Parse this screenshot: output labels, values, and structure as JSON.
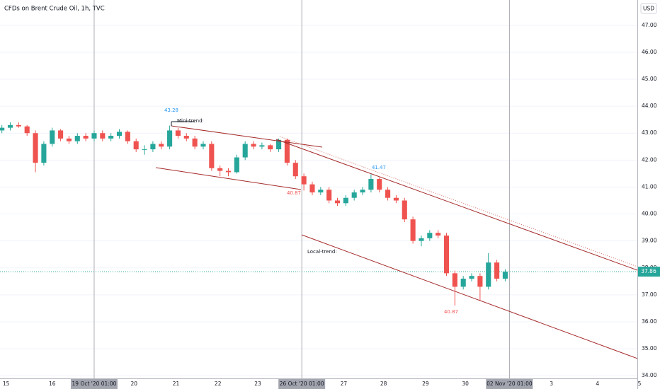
{
  "chart_data": {
    "type": "candlestick",
    "title": "CFDs on Brent Crude Oil, 1h, TVC",
    "currency": "USD",
    "x": [
      -0.2,
      0,
      0.2,
      0.4,
      0.6,
      0.8,
      1,
      1.2,
      1.4,
      1.6,
      1.8,
      2,
      2.2,
      2.4,
      2.6,
      2.8,
      3,
      3.2,
      3.4,
      3.6,
      3.8,
      4,
      4.2,
      4.4,
      4.6,
      4.8,
      5,
      5.2,
      5.4,
      5.6,
      5.8,
      6,
      6.2,
      6.4,
      6.6,
      6.8,
      7,
      7.2,
      7.4,
      7.6,
      7.8,
      8,
      8.2,
      8.4,
      8.6,
      8.8,
      9,
      9.2,
      9.4,
      9.6,
      9.8,
      10,
      10.2,
      10.4,
      10.6,
      10.8,
      11,
      11.2,
      11.4,
      11.6,
      11.8
    ],
    "open": [
      43.1,
      43.2,
      43.3,
      43.25,
      43.0,
      41.9,
      42.6,
      43.1,
      42.8,
      42.7,
      42.9,
      42.8,
      43.0,
      42.8,
      42.9,
      43.05,
      42.7,
      42.4,
      42.4,
      42.6,
      42.5,
      43.1,
      42.9,
      42.8,
      42.5,
      42.6,
      41.7,
      41.6,
      41.55,
      42.1,
      42.6,
      42.5,
      42.55,
      42.4,
      42.75,
      41.9,
      41.4,
      41.1,
      40.8,
      40.9,
      40.5,
      40.4,
      40.6,
      40.8,
      40.9,
      41.3,
      40.9,
      40.6,
      40.5,
      39.8,
      39.0,
      39.1,
      39.3,
      39.2,
      37.8,
      37.3,
      37.6,
      37.7,
      37.3,
      38.2,
      37.6
    ],
    "high": [
      43.3,
      43.4,
      43.4,
      43.3,
      43.1,
      42.7,
      43.2,
      43.15,
      42.9,
      43.0,
      43.0,
      43.1,
      43.1,
      43.0,
      43.15,
      43.1,
      42.8,
      42.55,
      42.7,
      42.7,
      43.28,
      43.2,
      43.0,
      42.9,
      42.7,
      42.7,
      41.8,
      41.7,
      42.2,
      42.7,
      42.7,
      42.65,
      42.6,
      42.8,
      42.8,
      42.0,
      41.5,
      41.2,
      41.0,
      41.0,
      40.6,
      40.7,
      40.9,
      41.0,
      41.47,
      41.35,
      41.0,
      40.7,
      40.6,
      39.9,
      39.2,
      39.4,
      39.4,
      39.3,
      37.9,
      37.7,
      37.8,
      37.8,
      38.55,
      38.3,
      37.95
    ],
    "low": [
      43.0,
      43.1,
      43.2,
      42.9,
      41.55,
      41.8,
      42.5,
      42.7,
      42.6,
      42.6,
      42.7,
      42.7,
      42.7,
      42.7,
      42.8,
      42.6,
      42.3,
      42.2,
      42.3,
      42.4,
      42.4,
      42.8,
      42.7,
      42.4,
      42.4,
      41.6,
      41.4,
      41.4,
      41.5,
      42.0,
      42.4,
      42.4,
      42.3,
      42.3,
      41.8,
      41.3,
      40.87,
      40.7,
      40.7,
      40.4,
      40.3,
      40.3,
      40.5,
      40.7,
      40.8,
      40.8,
      40.5,
      40.4,
      39.7,
      38.9,
      38.8,
      39.0,
      39.1,
      37.7,
      36.6,
      37.2,
      37.5,
      36.8,
      37.2,
      37.5,
      37.5
    ],
    "close": [
      43.2,
      43.3,
      43.25,
      43.0,
      41.9,
      42.6,
      43.1,
      42.8,
      42.7,
      42.9,
      42.8,
      43.0,
      42.8,
      42.9,
      43.05,
      42.7,
      42.4,
      42.4,
      42.6,
      42.5,
      43.1,
      42.9,
      42.8,
      42.5,
      42.6,
      41.7,
      41.6,
      41.55,
      42.1,
      42.6,
      42.5,
      42.55,
      42.4,
      42.75,
      41.9,
      41.4,
      41.1,
      40.8,
      40.9,
      40.5,
      40.4,
      40.6,
      40.8,
      40.9,
      41.3,
      40.9,
      40.6,
      40.5,
      39.8,
      39.0,
      39.1,
      39.3,
      39.2,
      37.8,
      37.3,
      37.6,
      37.7,
      37.3,
      38.2,
      37.6,
      37.86
    ],
    "up_color": "#26a69a",
    "down_color": "#ef5350",
    "xlim": [
      -0.245,
      14.95
    ],
    "ylim": [
      33.9,
      47.94
    ],
    "xticks": [
      {
        "value": -0.1,
        "label": "15"
      },
      {
        "value": 1,
        "label": "16"
      },
      {
        "value": 2,
        "label": "19 Oct '20   01:00",
        "highlight": true
      },
      {
        "value": 2.95,
        "label": "20"
      },
      {
        "value": 3.95,
        "label": "21"
      },
      {
        "value": 4.95,
        "label": "22"
      },
      {
        "value": 5.9,
        "label": "23"
      },
      {
        "value": 6.95,
        "label": "26 Oct '20   01:00",
        "highlight": true
      },
      {
        "value": 7.95,
        "label": "27"
      },
      {
        "value": 8.9,
        "label": "28"
      },
      {
        "value": 9.9,
        "label": "29"
      },
      {
        "value": 10.85,
        "label": "30"
      },
      {
        "value": 11.9,
        "label": "02 Nov '20   01:00",
        "highlight": true
      },
      {
        "value": 12.9,
        "label": "3"
      },
      {
        "value": 14,
        "label": "4"
      },
      {
        "value": 15,
        "label": "5"
      }
    ],
    "yticks": [
      {
        "value": 34,
        "label": "34.00"
      },
      {
        "value": 35,
        "label": "35.00"
      },
      {
        "value": 36,
        "label": "36.00"
      },
      {
        "value": 37,
        "label": "37.00"
      },
      {
        "value": 38,
        "label": "38.00"
      },
      {
        "value": 39,
        "label": "39.00"
      },
      {
        "value": 40,
        "label": "40.00"
      },
      {
        "value": 41,
        "label": "41.00"
      },
      {
        "value": 42,
        "label": "42.00"
      },
      {
        "value": 43,
        "label": "43.00"
      },
      {
        "value": 44,
        "label": "44.00"
      },
      {
        "value": 45,
        "label": "45.00"
      },
      {
        "value": 46,
        "label": "46.00"
      },
      {
        "value": 47,
        "label": "47.00"
      }
    ],
    "last_price": 37.86,
    "last_price_color": "#26a69a"
  },
  "annotations": {
    "mini_high": "43.28",
    "mini_label": "Mini-trend:",
    "mini_low": "40.87",
    "peak": "41.47",
    "local_label": "Local-trend:",
    "local_low": "40.87"
  }
}
